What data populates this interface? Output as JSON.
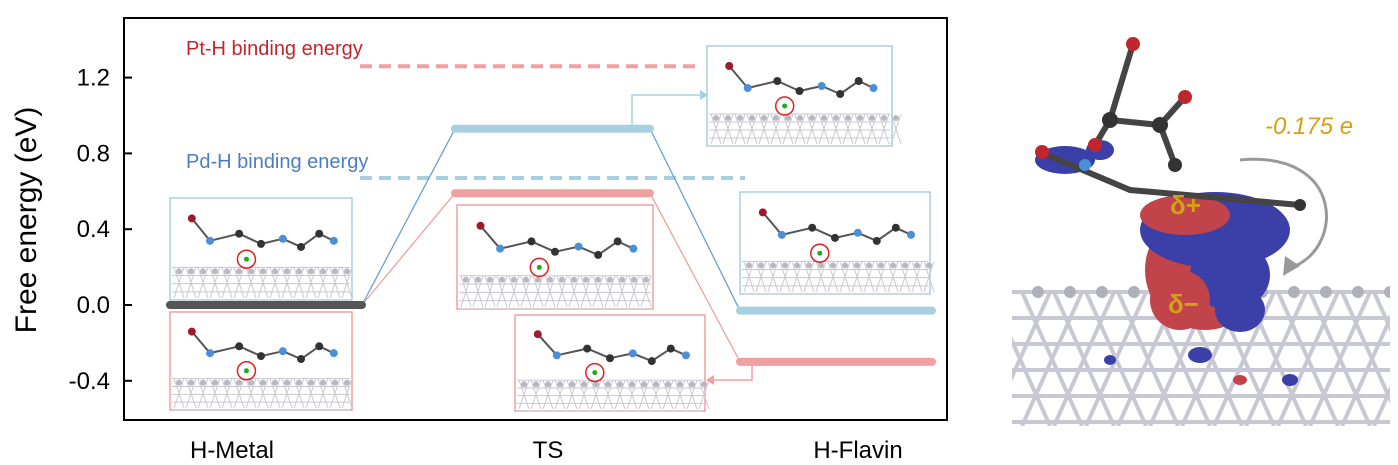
{
  "chart_data": {
    "type": "line",
    "ylabel": "Free energy (eV)",
    "ylim": [
      -0.6,
      1.5
    ],
    "yticks": [
      -0.4,
      0.0,
      0.4,
      0.8,
      1.2
    ],
    "ytick_labels": [
      "-0.4",
      "0.0",
      "0.4",
      "0.8",
      "1.2"
    ],
    "categories": [
      "H-Metal",
      "TS",
      "H-Flavin"
    ],
    "grid": false,
    "series": [
      {
        "key": "pd",
        "color": "#a8cfe0",
        "values": [
          0.0,
          0.93,
          -0.03
        ]
      },
      {
        "key": "pt",
        "color": "#f0a0a0",
        "values": [
          0.0,
          0.59,
          -0.3
        ]
      }
    ],
    "reference_lines": [
      {
        "label": "Pt-H binding energy",
        "value": 1.26,
        "color": "#f0a0a0",
        "label_color": "#c0262e"
      },
      {
        "label": "Pd-H binding energy",
        "value": 0.67,
        "color": "#a8cfe0",
        "label_color": "#4a7fc1"
      }
    ],
    "initial_state_color": "#555555",
    "annotations": {
      "charge_transfer": "-0.175 e",
      "delta_plus": "δ+",
      "delta_minus": "δ−",
      "label_color": "#d4a017"
    }
  }
}
